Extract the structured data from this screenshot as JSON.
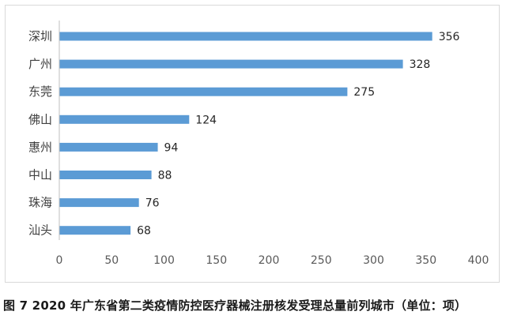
{
  "caption": "图 7  2020 年广东省第二类疫情防控医疗器械注册核发受理总量前列城市（单位：项）",
  "chart_data": {
    "type": "bar",
    "orientation": "horizontal",
    "categories": [
      "深圳",
      "广州",
      "东莞",
      "佛山",
      "惠州",
      "中山",
      "珠海",
      "汕头"
    ],
    "values": [
      356,
      328,
      275,
      124,
      94,
      88,
      76,
      68
    ],
    "xlim": [
      0,
      400
    ],
    "x_ticks": [
      0,
      50,
      100,
      150,
      200,
      250,
      300,
      350,
      400
    ],
    "title": "",
    "xlabel": "",
    "ylabel": "",
    "grid": false,
    "legend": "none",
    "data_labels": true,
    "bar_color": "#5b9bd5"
  }
}
